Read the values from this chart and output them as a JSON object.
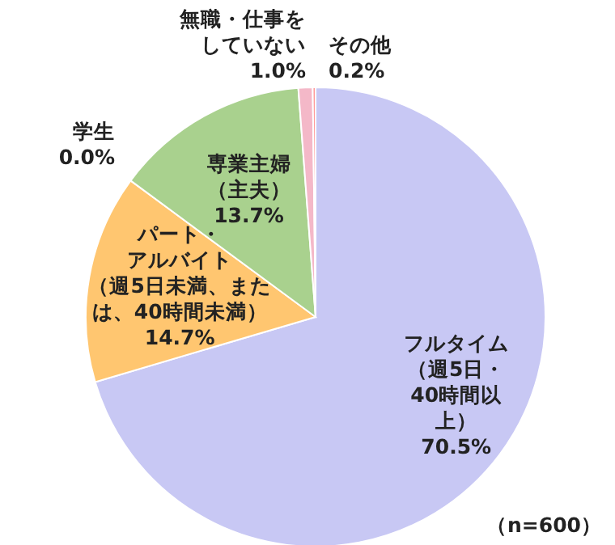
{
  "chart_data": {
    "type": "pie",
    "categories": [
      "フルタイム（週5日・40時間以上）",
      "パート・アルバイト（週5日未満、または、40時間未満）",
      "学生",
      "専業主婦（主夫）",
      "無職・仕事をしていない",
      "その他"
    ],
    "values": [
      70.5,
      14.7,
      0.0,
      13.7,
      1.0,
      0.2
    ],
    "value_labels": [
      "70.5%",
      "14.7%",
      "0.0%",
      "13.7%",
      "1.0%",
      "0.2%"
    ],
    "colors": [
      "#c8c8f4",
      "#ffc670",
      null,
      "#a9d18e",
      "#f4b8c8",
      "#ff9999"
    ],
    "annotations": [
      "（n=600）"
    ]
  }
}
